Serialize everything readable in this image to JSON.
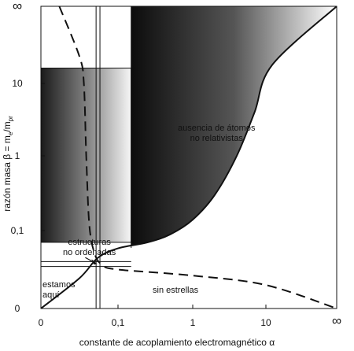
{
  "chart_data": {
    "type": "line",
    "title": "",
    "xlabel": "constante de acoplamiento electromagnético α",
    "ylabel_prefix": "razón masa β = m",
    "ylabel_sub1": "e",
    "ylabel_mid": "/m",
    "ylabel_sub2": "pr",
    "x_scale": "compactified-log",
    "y_scale": "compactified-log",
    "x_ticks": [
      "0",
      "0,1",
      "1",
      "10",
      "∞"
    ],
    "y_ticks": [
      "0",
      "0,1",
      "1",
      "10",
      "∞"
    ],
    "series": [
      {
        "style": "solid",
        "points": [
          [
            0,
            0
          ],
          [
            0.01,
            0.006
          ],
          [
            0.03,
            0.02
          ],
          [
            0.1,
            0.035
          ],
          [
            0.25,
            0.05
          ],
          [
            0.5,
            0.08
          ],
          [
            1,
            0.14
          ],
          [
            2,
            0.3
          ],
          [
            4,
            1
          ],
          [
            7,
            4
          ],
          [
            15,
            30
          ],
          [
            "∞",
            "∞"
          ]
        ]
      },
      {
        "style": "dashed",
        "points": [
          [
            0.003,
            "∞"
          ],
          [
            0.01,
            50
          ],
          [
            0.013,
            10
          ],
          [
            0.015,
            1
          ],
          [
            0.018,
            0.12
          ],
          [
            0.025,
            0.025
          ],
          [
            0.04,
            0.013
          ],
          [
            0.1,
            0.01
          ],
          [
            1,
            0.007
          ],
          [
            10,
            0.004
          ],
          [
            "∞",
            0
          ]
        ]
      }
    ],
    "regions": [
      {
        "label": "ausencia de átomos no relativistas",
        "fill": "gradient-dark-to-light"
      },
      {
        "label": "estructuras no ordenadas",
        "fill": "gradient-dark-to-light"
      }
    ],
    "annotations": [
      {
        "lines": [
          "ausencia de átomos",
          "no relativistas"
        ]
      },
      {
        "lines": [
          "estructuras",
          "no ordenadas"
        ]
      },
      {
        "lines": [
          "estamos",
          "aquí"
        ]
      },
      {
        "lines": [
          "sin estrellas"
        ]
      }
    ],
    "grid": false,
    "legend": "none"
  }
}
